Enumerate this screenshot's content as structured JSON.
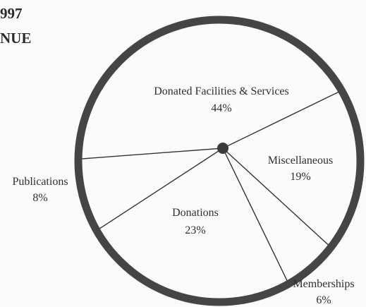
{
  "title_lines": [
    "997",
    "NUE"
  ],
  "colors": {
    "ring": "#454545",
    "divider": "#333333",
    "hub": "#3a3a3a",
    "background": "#fbfbfb",
    "text": "#2e2e2e"
  },
  "chart_data": {
    "type": "pie",
    "title": "997 NUE",
    "slices": [
      {
        "label": "Donated Facilities & Services",
        "percent_label": "44%",
        "value": 44
      },
      {
        "label": "Miscellaneous",
        "percent_label": "19%",
        "value": 19
      },
      {
        "label": "Memberships",
        "percent_label": "6%",
        "value": 6
      },
      {
        "label": "Donations",
        "percent_label": "23%",
        "value": 23
      },
      {
        "label": "Publications",
        "percent_label": "8%",
        "value": 8
      }
    ]
  }
}
